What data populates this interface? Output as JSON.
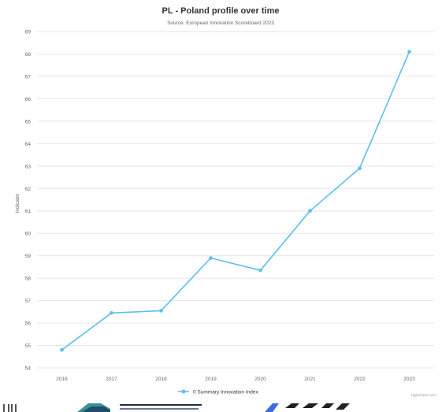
{
  "chart_data": {
    "type": "line",
    "title": "PL - Poland profile over time",
    "subtitle": "Source: European Innovation Scoreboard 2023",
    "ylabel": "Indicator",
    "xlabel": "",
    "categories": [
      "2016",
      "2017",
      "2018",
      "2019",
      "2020",
      "2021",
      "2022",
      "2023"
    ],
    "series": [
      {
        "name": "0 Summary Innovation Index",
        "color": "#5bc0eb",
        "values": [
          54.8,
          56.45,
          56.55,
          58.9,
          58.35,
          61.0,
          62.9,
          68.1
        ]
      }
    ],
    "ylim": [
      54,
      69
    ],
    "yticks": [
      "54",
      "55",
      "56",
      "57",
      "58",
      "59",
      "60",
      "61",
      "62",
      "63",
      "64",
      "65",
      "66",
      "67",
      "68",
      "69"
    ],
    "grid": true,
    "legend": "bottom-center",
    "credits": "Highcharts.com"
  }
}
